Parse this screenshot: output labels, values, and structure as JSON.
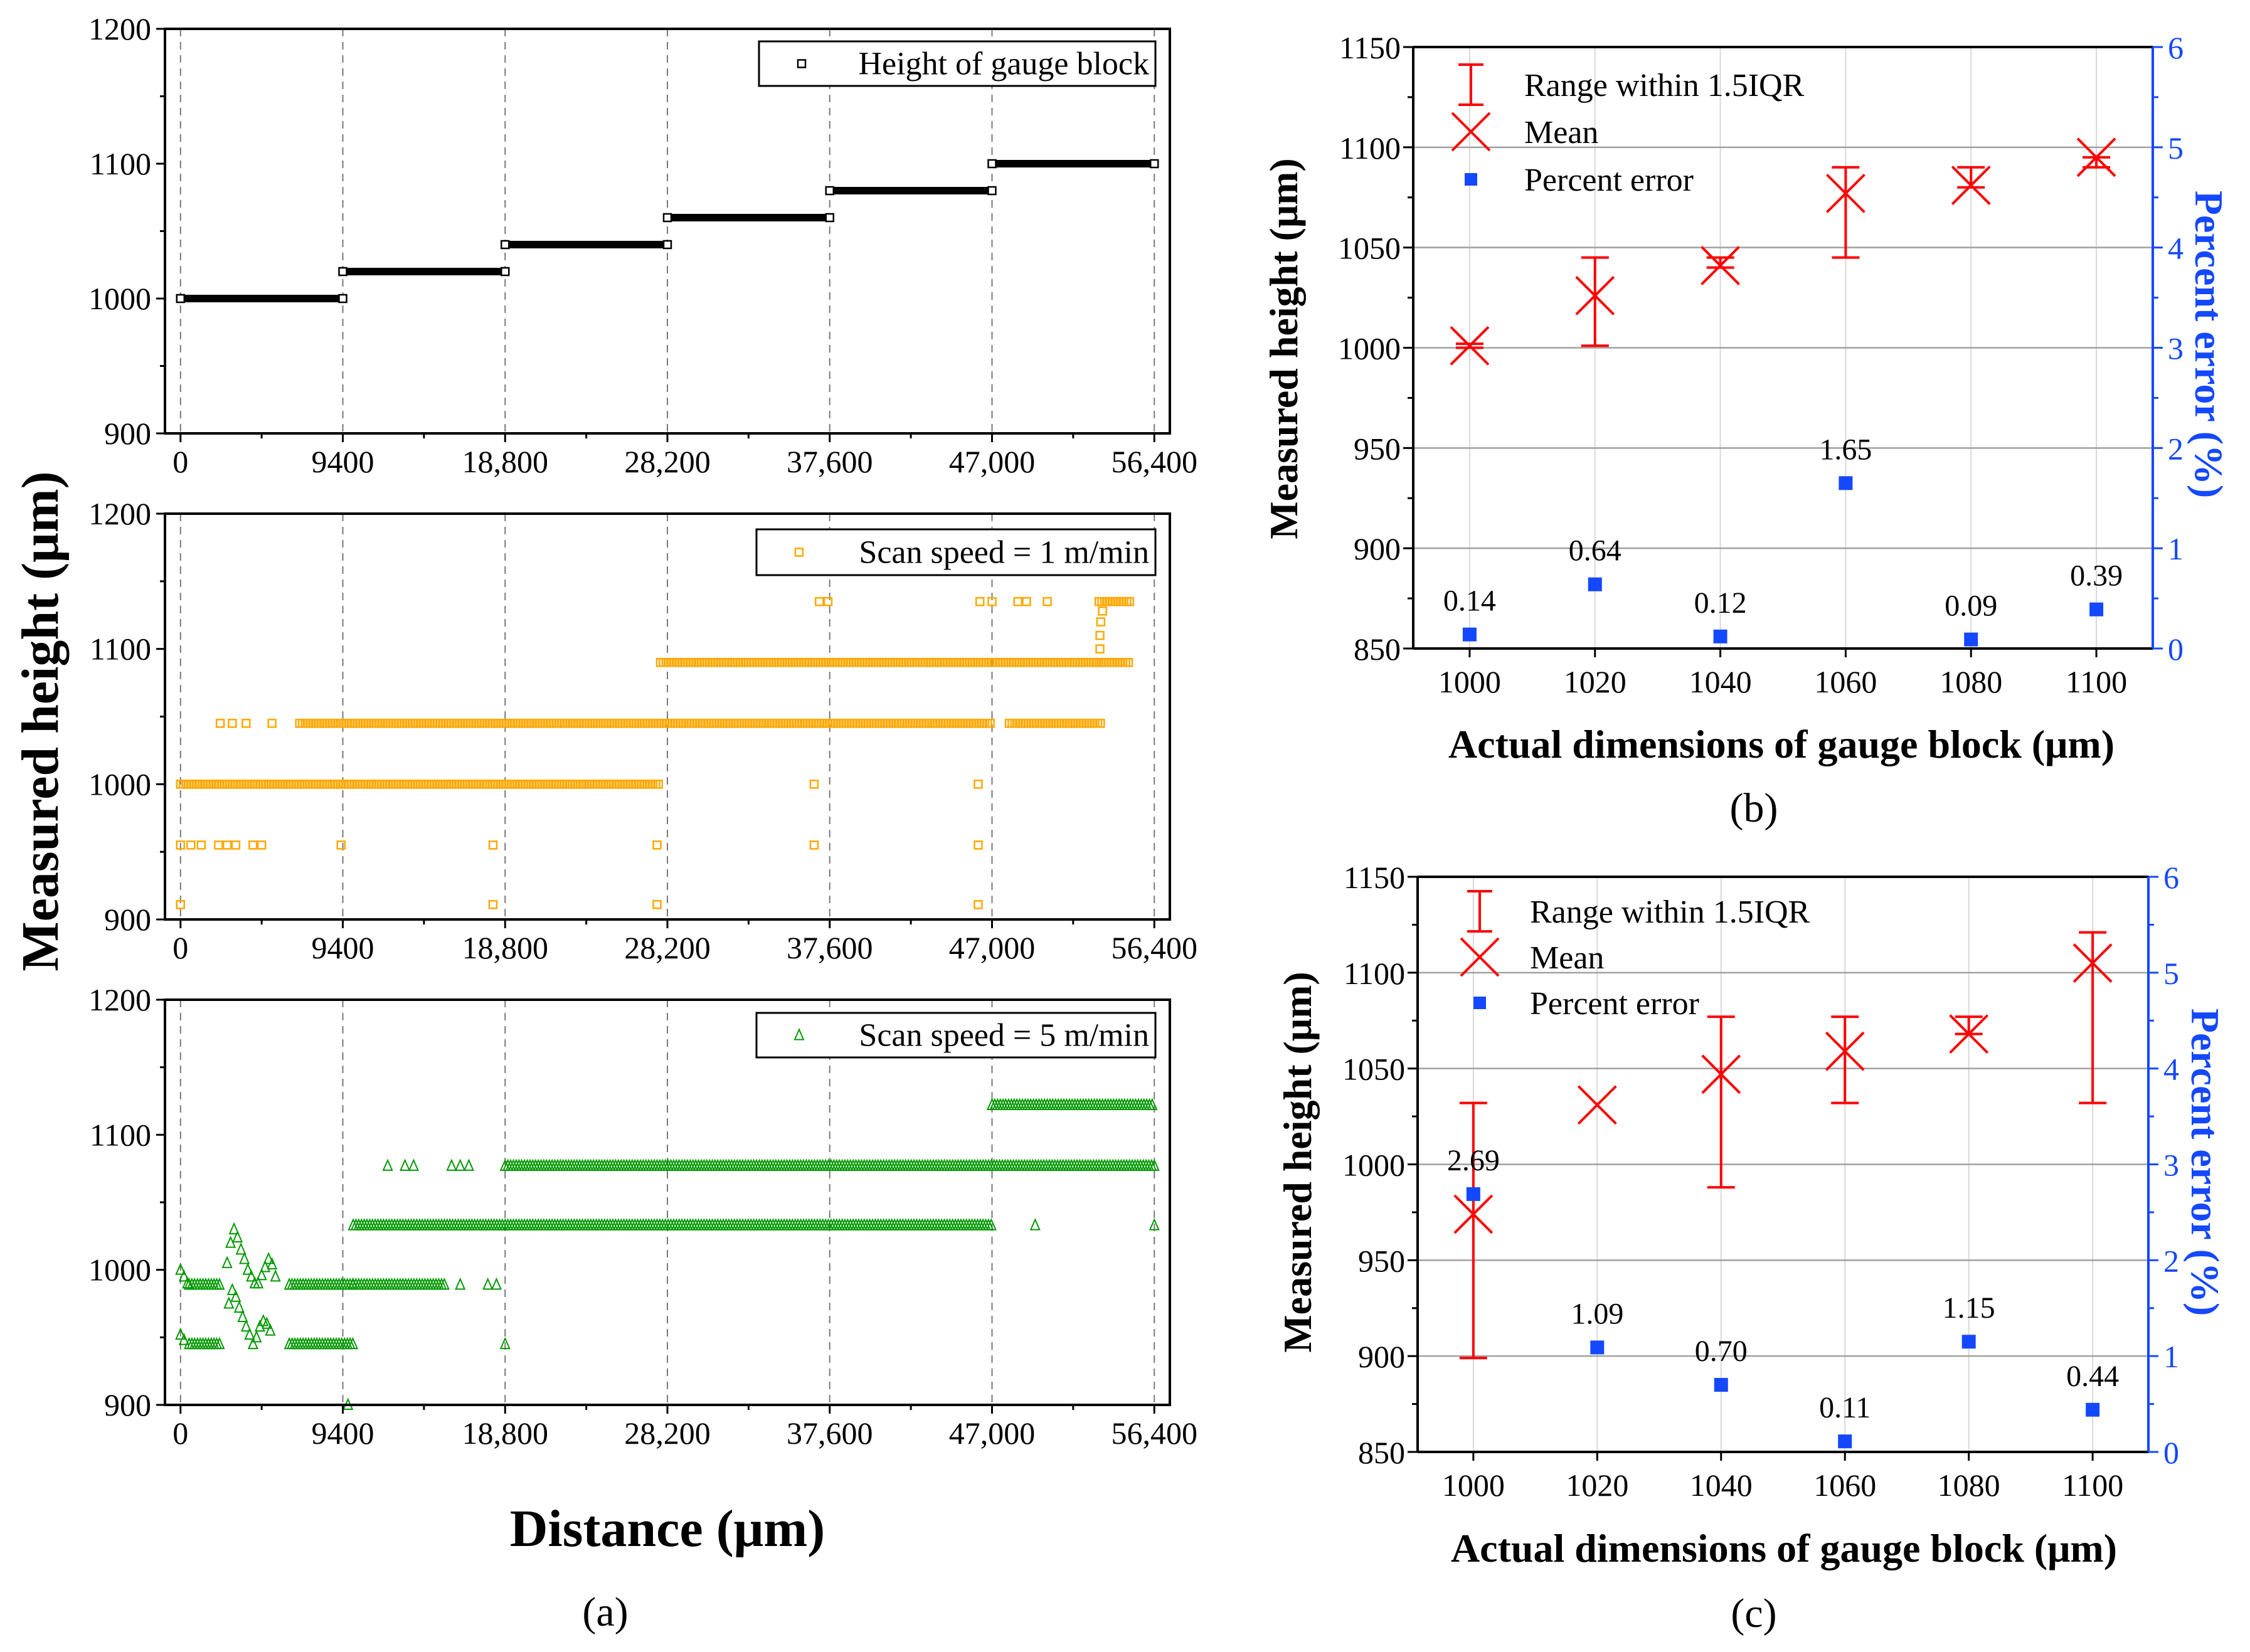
{
  "chart_data": [
    {
      "panel": "(a)",
      "type": "scatter",
      "ylabel": "Measured height (μm)",
      "xlabel": "Distance (μm)",
      "xticks": [
        "0",
        "9400",
        "18,800",
        "28,200",
        "37,600",
        "47,000",
        "56,400"
      ],
      "xtick_values": [
        0,
        9400,
        18800,
        28200,
        37600,
        47000,
        56400
      ],
      "xlim": [
        -900,
        57300
      ],
      "grid": "vertical dashed",
      "subplots": [
        {
          "legend": "Height of gauge block",
          "legend_position": "top-right",
          "ylim": [
            900,
            1200
          ],
          "yticks": [
            "900",
            "1000",
            "1100",
            "1200"
          ],
          "ytick_values": [
            900,
            1000,
            1100,
            1200
          ],
          "color": "#000000",
          "marker": "square",
          "segments": [
            [
              0,
              9400,
              1000
            ],
            [
              9400,
              18800,
              1020
            ],
            [
              18800,
              28200,
              1040
            ],
            [
              28200,
              37600,
              1060
            ],
            [
              37600,
              47000,
              1080
            ],
            [
              47000,
              56400,
              1100
            ]
          ],
          "points": [
            [
              0,
              1000
            ],
            [
              9400,
              1000
            ],
            [
              9400,
              1020
            ],
            [
              18800,
              1020
            ],
            [
              18800,
              1040
            ],
            [
              28200,
              1040
            ],
            [
              28200,
              1060
            ],
            [
              37600,
              1060
            ],
            [
              37600,
              1080
            ],
            [
              47000,
              1080
            ],
            [
              47000,
              1100
            ],
            [
              56400,
              1100
            ]
          ]
        },
        {
          "legend": "Scan speed = 1 m/min",
          "legend_position": "top-right",
          "ylim": [
            900,
            1200
          ],
          "yticks": [
            "900",
            "1000",
            "1100",
            "1200"
          ],
          "ytick_values": [
            900,
            1000,
            1100,
            1200
          ],
          "color": "#ffa800",
          "marker": "square",
          "segments": [
            [
              0,
              27700,
              1000
            ],
            [
              6900,
              47000,
              1045
            ],
            [
              48000,
              53400,
              1045
            ],
            [
              27800,
              53200,
              1090
            ],
            [
              53200,
              55000,
              1135
            ],
            [
              53300,
              55000,
              1090
            ]
          ],
          "points": [
            [
              0,
              955
            ],
            [
              600,
              955
            ],
            [
              1200,
              955
            ],
            [
              2200,
              955
            ],
            [
              2700,
              955
            ],
            [
              3200,
              955
            ],
            [
              4200,
              955
            ],
            [
              4700,
              955
            ],
            [
              9300,
              955
            ],
            [
              18100,
              955
            ],
            [
              27600,
              955
            ],
            [
              36700,
              955
            ],
            [
              46200,
              955
            ],
            [
              0,
              911
            ],
            [
              18100,
              911
            ],
            [
              27600,
              911
            ],
            [
              46200,
              911
            ],
            [
              2300,
              1045
            ],
            [
              3000,
              1045
            ],
            [
              3800,
              1045
            ],
            [
              5300,
              1045
            ],
            [
              36700,
              1000
            ],
            [
              46200,
              1000
            ],
            [
              37000,
              1135
            ],
            [
              37500,
              1135
            ],
            [
              46300,
              1135
            ],
            [
              47000,
              1135
            ],
            [
              48500,
              1135
            ],
            [
              49000,
              1135
            ],
            [
              50200,
              1135
            ],
            [
              53250,
              1100
            ],
            [
              53250,
              1110
            ],
            [
              53300,
              1120
            ],
            [
              53400,
              1128
            ]
          ]
        },
        {
          "legend": "Scan speed = 5 m/min",
          "legend_position": "top-right",
          "ylim": [
            900,
            1200
          ],
          "yticks": [
            "900",
            "1000",
            "1100",
            "1200"
          ],
          "ytick_values": [
            900,
            1000,
            1100,
            1200
          ],
          "color": "#009900",
          "marker": "triangle",
          "segments": [
            [
              500,
              2300,
              989
            ],
            [
              6300,
              10000,
              989
            ],
            [
              10000,
              15300,
              989
            ],
            [
              500,
              2300,
              945
            ],
            [
              6300,
              10000,
              945
            ],
            [
              10000,
              47000,
              1033
            ],
            [
              18800,
              56400,
              1077
            ],
            [
              47000,
              56400,
              1122
            ]
          ],
          "points": [
            [
              0,
              1000
            ],
            [
              200,
              995
            ],
            [
              400,
              990
            ],
            [
              0,
              952
            ],
            [
              200,
              948
            ],
            [
              2700,
              1005
            ],
            [
              2900,
              1020
            ],
            [
              3100,
              1030
            ],
            [
              3300,
              1024
            ],
            [
              3500,
              1015
            ],
            [
              3700,
              1008
            ],
            [
              3900,
              1000
            ],
            [
              4100,
              995
            ],
            [
              4300,
              990
            ],
            [
              4500,
              990
            ],
            [
              4700,
              996
            ],
            [
              4900,
              1002
            ],
            [
              5100,
              1008
            ],
            [
              5300,
              1004
            ],
            [
              5500,
              995
            ],
            [
              2800,
              975
            ],
            [
              3000,
              985
            ],
            [
              3200,
              980
            ],
            [
              3400,
              972
            ],
            [
              3600,
              965
            ],
            [
              3800,
              958
            ],
            [
              4000,
              952
            ],
            [
              4200,
              945
            ],
            [
              4400,
              950
            ],
            [
              4600,
              958
            ],
            [
              4800,
              962
            ],
            [
              5000,
              960
            ],
            [
              5200,
              955
            ],
            [
              12000,
              1077
            ],
            [
              13000,
              1077
            ],
            [
              13500,
              1077
            ],
            [
              15700,
              1077
            ],
            [
              16200,
              1077
            ],
            [
              16700,
              1077
            ],
            [
              16200,
              989
            ],
            [
              17800,
              989
            ],
            [
              18300,
              989
            ],
            [
              18800,
              945
            ],
            [
              9700,
              900
            ],
            [
              49500,
              1033
            ],
            [
              56400,
              1033
            ]
          ]
        }
      ]
    },
    {
      "panel": "(b)",
      "type": "scatter-errorbar",
      "xlabel": "Actual dimensions of gauge block (μm)",
      "ylabel": "Measured height (μm)",
      "y2label": "Percent error (%)",
      "categories": [
        "1000",
        "1020",
        "1040",
        "1060",
        "1080",
        "1100"
      ],
      "ylim": [
        850,
        1150
      ],
      "yticks": [
        "850",
        "900",
        "950",
        "1000",
        "1050",
        "1100",
        "1150"
      ],
      "ytick_values": [
        850,
        900,
        950,
        1000,
        1050,
        1100,
        1150
      ],
      "y2lim": [
        0,
        6
      ],
      "y2ticks": [
        "0",
        "1",
        "2",
        "3",
        "4",
        "5",
        "6"
      ],
      "y2tick_values": [
        0,
        1,
        2,
        3,
        4,
        5,
        6
      ],
      "legend": [
        "Range within 1.5IQR",
        "Mean",
        "Percent error"
      ],
      "legend_position": "top-left",
      "mean": [
        1001,
        1026,
        1041,
        1077,
        1081,
        1095
      ],
      "range_low": [
        1000,
        1001,
        1040,
        1045,
        1080,
        1090
      ],
      "range_high": [
        1002,
        1045,
        1045,
        1090,
        1090,
        1095
      ],
      "percent_error": [
        0.14,
        0.64,
        0.12,
        1.65,
        0.09,
        0.39
      ],
      "percent_labels": [
        "0.14",
        "0.64",
        "0.12",
        "1.65",
        "0.09",
        "0.39"
      ]
    },
    {
      "panel": "(c)",
      "type": "scatter-errorbar",
      "xlabel": "Actual dimensions of gauge block (μm)",
      "ylabel": "Measured height (μm)",
      "y2label": "Percent error (%)",
      "categories": [
        "1000",
        "1020",
        "1040",
        "1060",
        "1080",
        "1100"
      ],
      "ylim": [
        850,
        1150
      ],
      "yticks": [
        "850",
        "900",
        "950",
        "1000",
        "1050",
        "1100",
        "1150"
      ],
      "ytick_values": [
        850,
        900,
        950,
        1000,
        1050,
        1100,
        1150
      ],
      "y2lim": [
        0,
        6
      ],
      "y2ticks": [
        "0",
        "1",
        "2",
        "3",
        "4",
        "5",
        "6"
      ],
      "y2tick_values": [
        0,
        1,
        2,
        3,
        4,
        5,
        6
      ],
      "legend": [
        "Range within 1.5IQR",
        "Mean",
        "Percent error"
      ],
      "legend_position": "top-left",
      "mean": [
        974,
        1031,
        1047,
        1059,
        1068,
        1105
      ],
      "range_low": [
        899,
        1031,
        988,
        1032,
        1068,
        1032
      ],
      "range_high": [
        1032,
        1031,
        1077,
        1077,
        1077,
        1121
      ],
      "percent_error": [
        2.69,
        1.09,
        0.7,
        0.11,
        1.15,
        0.44
      ],
      "percent_labels": [
        "2.69",
        "1.09",
        "0.70",
        "0.11",
        "1.15",
        "0.44"
      ]
    }
  ],
  "colors": {
    "mean": "#ff0000",
    "percent": "#1448ff",
    "grid": "#a0a0a0"
  }
}
